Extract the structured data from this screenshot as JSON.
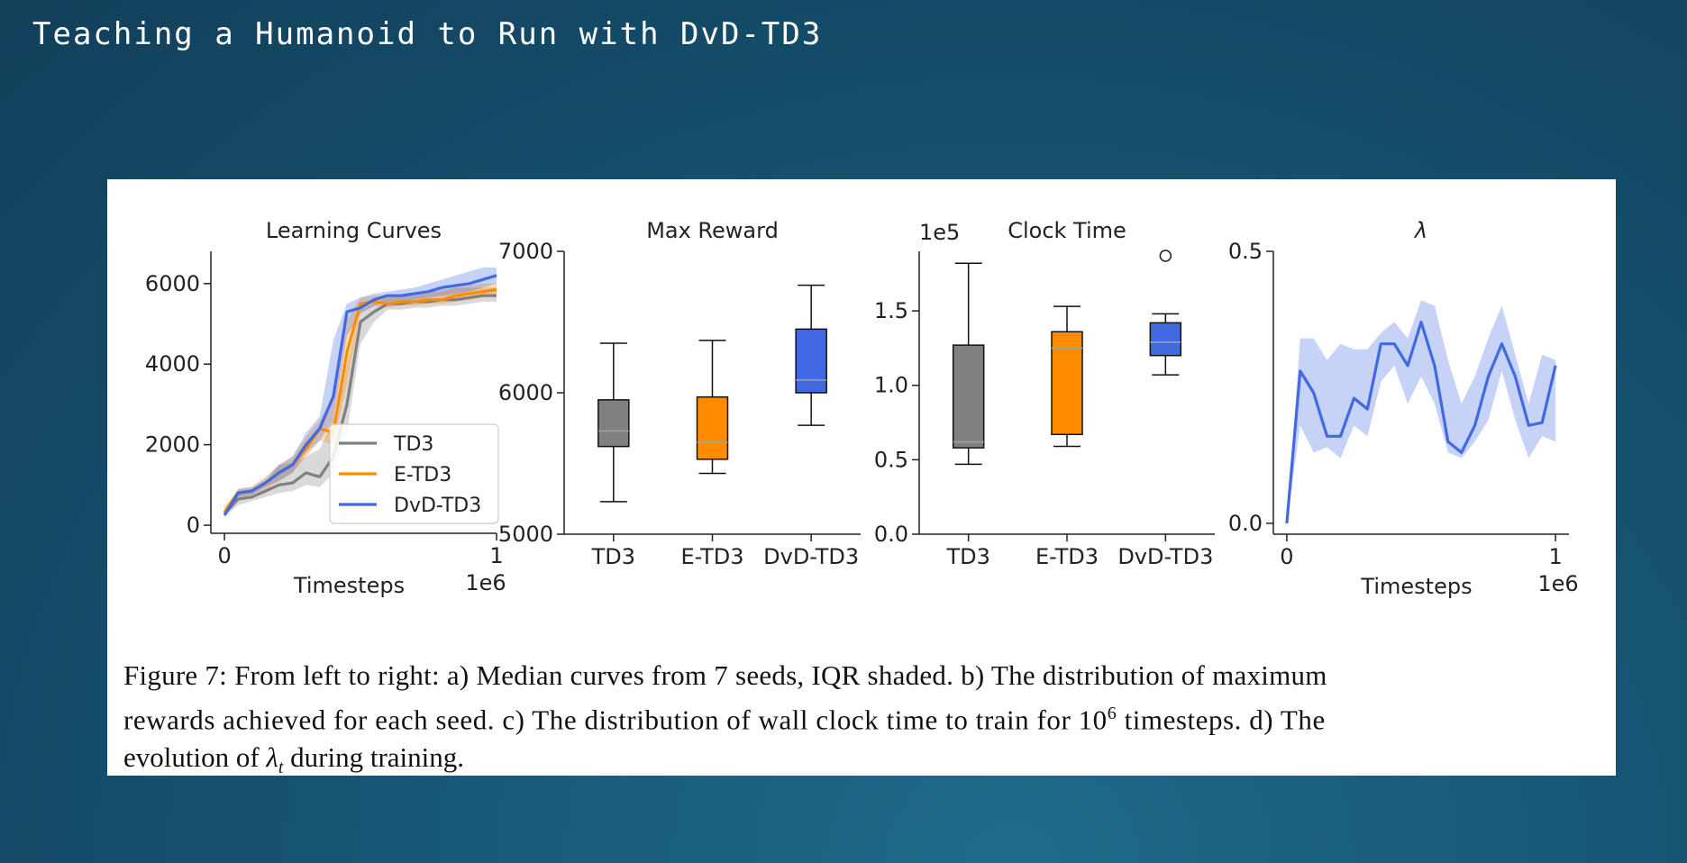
{
  "slide": {
    "title": "Teaching a Humanoid to Run with DvD-TD3"
  },
  "colors": {
    "td3": "#808080",
    "etd3": "#ff8c00",
    "dvd": "#4169e1",
    "lambda": "#4169e1"
  },
  "caption": {
    "figure_label": "Figure 7:",
    "line1_rest": "From left to right: a) Median curves from 7 seeds, IQR shaded. b) The distribution of maximum",
    "line2_a": "rewards achieved for each seed.  c) The distribution of wall clock time to train for 10",
    "line2_sup": "6",
    "line2_b": " timesteps.  d) The",
    "line3_a": "evolution of ",
    "line3_lambda": "λ",
    "line3_sub": "t",
    "line3_b": " during training."
  },
  "chart_data": [
    {
      "type": "line",
      "title": "Learning Curves",
      "xlabel": "Timesteps",
      "x_scale_label": "1e6",
      "ylabel": "",
      "xlim": [
        -0.05,
        1.0
      ],
      "ylim": [
        -200,
        6800
      ],
      "xticks": [
        0,
        1
      ],
      "xtick_labels": [
        "0",
        "1"
      ],
      "yticks": [
        0,
        2000,
        4000,
        6000
      ],
      "ytick_labels": [
        "0",
        "2000",
        "4000",
        "6000"
      ],
      "legend": {
        "placement": "lower-right",
        "entries": [
          "TD3",
          "E-TD3",
          "DvD-TD3"
        ]
      },
      "x": [
        0,
        0.05,
        0.1,
        0.15,
        0.2,
        0.25,
        0.3,
        0.35,
        0.4,
        0.45,
        0.5,
        0.55,
        0.6,
        0.65,
        0.7,
        0.75,
        0.8,
        0.85,
        0.9,
        0.95,
        1.0
      ],
      "series": [
        {
          "name": "TD3",
          "color_key": "td3",
          "median": [
            280,
            650,
            700,
            850,
            1000,
            1050,
            1300,
            1200,
            1700,
            3000,
            5050,
            5300,
            5500,
            5500,
            5550,
            5550,
            5600,
            5600,
            5650,
            5700,
            5700
          ],
          "lower": [
            200,
            500,
            600,
            700,
            800,
            850,
            1000,
            950,
            1300,
            2300,
            4500,
            5050,
            5350,
            5350,
            5400,
            5400,
            5450,
            5450,
            5500,
            5550,
            5550
          ],
          "upper": [
            400,
            850,
            900,
            1050,
            1500,
            1550,
            1700,
            1900,
            2600,
            4000,
            5350,
            5500,
            5650,
            5700,
            5700,
            5750,
            5850,
            5900,
            5900,
            5900,
            5900
          ]
        },
        {
          "name": "E-TD3",
          "color_key": "etd3",
          "median": [
            330,
            800,
            850,
            1050,
            1300,
            1500,
            1900,
            2400,
            2300,
            4300,
            5500,
            5550,
            5500,
            5550,
            5550,
            5600,
            5600,
            5700,
            5750,
            5800,
            5850
          ],
          "lower": [
            250,
            650,
            750,
            900,
            1100,
            1300,
            1700,
            2100,
            2000,
            3500,
            5300,
            5450,
            5400,
            5450,
            5450,
            5500,
            5500,
            5550,
            5600,
            5650,
            5700
          ],
          "upper": [
            450,
            900,
            950,
            1200,
            1500,
            1700,
            2200,
            2600,
            3200,
            5100,
            5650,
            5700,
            5700,
            5700,
            5750,
            5800,
            5800,
            5900,
            5950,
            6000,
            6000
          ]
        },
        {
          "name": "DvD-TD3",
          "color_key": "dvd",
          "median": [
            250,
            800,
            850,
            1050,
            1300,
            1500,
            2000,
            2400,
            3200,
            5300,
            5400,
            5600,
            5700,
            5700,
            5750,
            5800,
            5900,
            5950,
            6000,
            6100,
            6200
          ],
          "lower": [
            200,
            700,
            750,
            950,
            1100,
            1300,
            1800,
            2100,
            2600,
            4700,
            5250,
            5450,
            5550,
            5550,
            5600,
            5650,
            5700,
            5750,
            5800,
            5900,
            6000
          ],
          "upper": [
            350,
            900,
            950,
            1150,
            1500,
            1700,
            2300,
            2700,
            4600,
            5500,
            5650,
            5750,
            5800,
            5850,
            5900,
            6000,
            6100,
            6200,
            6300,
            6400,
            6400
          ]
        }
      ]
    },
    {
      "type": "box",
      "title": "Max Reward",
      "ylim": [
        5000,
        7000
      ],
      "yticks": [
        5000,
        6000,
        7000
      ],
      "ytick_labels": [
        "5000",
        "6000",
        "7000"
      ],
      "categories": [
        "TD3",
        "E-TD3",
        "DvD-TD3"
      ],
      "boxes": [
        {
          "name": "TD3",
          "color_key": "td3",
          "whisker_low": 5230,
          "q1": 5620,
          "median": 5730,
          "q3": 5950,
          "whisker_high": 6350
        },
        {
          "name": "E-TD3",
          "color_key": "etd3",
          "whisker_low": 5430,
          "q1": 5530,
          "median": 5650,
          "q3": 5970,
          "whisker_high": 6370
        },
        {
          "name": "DvD-TD3",
          "color_key": "dvd",
          "whisker_low": 5770,
          "q1": 6000,
          "median": 6090,
          "q3": 6450,
          "whisker_high": 6760
        }
      ]
    },
    {
      "type": "box",
      "title": "Clock Time",
      "y_scale_label": "1e5",
      "ylim": [
        0.0,
        1.9
      ],
      "yticks": [
        0.0,
        0.5,
        1.0,
        1.5
      ],
      "ytick_labels": [
        "0.0",
        "0.5",
        "1.0",
        "1.5"
      ],
      "categories": [
        "TD3",
        "E-TD3",
        "DvD-TD3"
      ],
      "boxes": [
        {
          "name": "TD3",
          "color_key": "td3",
          "whisker_low": 0.47,
          "q1": 0.58,
          "median": 0.62,
          "q3": 1.27,
          "whisker_high": 1.82,
          "outliers": []
        },
        {
          "name": "E-TD3",
          "color_key": "etd3",
          "whisker_low": 0.59,
          "q1": 0.67,
          "median": 1.25,
          "q3": 1.36,
          "whisker_high": 1.53,
          "outliers": []
        },
        {
          "name": "DvD-TD3",
          "color_key": "dvd",
          "whisker_low": 1.07,
          "q1": 1.2,
          "median": 1.29,
          "q3": 1.42,
          "whisker_high": 1.48,
          "outliers": [
            1.87
          ]
        }
      ]
    },
    {
      "type": "line",
      "title": "λ",
      "xlabel": "Timesteps",
      "x_scale_label": "1e6",
      "xlim": [
        -0.05,
        1.05
      ],
      "ylim": [
        -0.02,
        0.5
      ],
      "xticks": [
        0,
        1
      ],
      "xtick_labels": [
        "0",
        "1"
      ],
      "yticks": [
        0.0,
        0.5
      ],
      "ytick_labels": [
        "0.0",
        "0.5"
      ],
      "x": [
        0,
        0.05,
        0.1,
        0.15,
        0.2,
        0.25,
        0.3,
        0.35,
        0.4,
        0.45,
        0.5,
        0.55,
        0.6,
        0.65,
        0.7,
        0.75,
        0.8,
        0.85,
        0.9,
        0.95,
        1.0
      ],
      "series": [
        {
          "name": "λ",
          "color_key": "lambda",
          "median": [
            0.0,
            0.28,
            0.24,
            0.16,
            0.16,
            0.23,
            0.21,
            0.33,
            0.33,
            0.29,
            0.37,
            0.29,
            0.15,
            0.13,
            0.18,
            0.27,
            0.33,
            0.27,
            0.18,
            0.185,
            0.29
          ],
          "lower": [
            0.0,
            0.18,
            0.13,
            0.14,
            0.12,
            0.18,
            0.16,
            0.26,
            0.29,
            0.22,
            0.27,
            0.22,
            0.13,
            0.12,
            0.15,
            0.19,
            0.28,
            0.19,
            0.12,
            0.16,
            0.15
          ],
          "upper": [
            0.0,
            0.34,
            0.34,
            0.3,
            0.33,
            0.32,
            0.32,
            0.35,
            0.37,
            0.34,
            0.41,
            0.4,
            0.3,
            0.22,
            0.27,
            0.34,
            0.4,
            0.31,
            0.22,
            0.31,
            0.3
          ]
        }
      ]
    }
  ]
}
